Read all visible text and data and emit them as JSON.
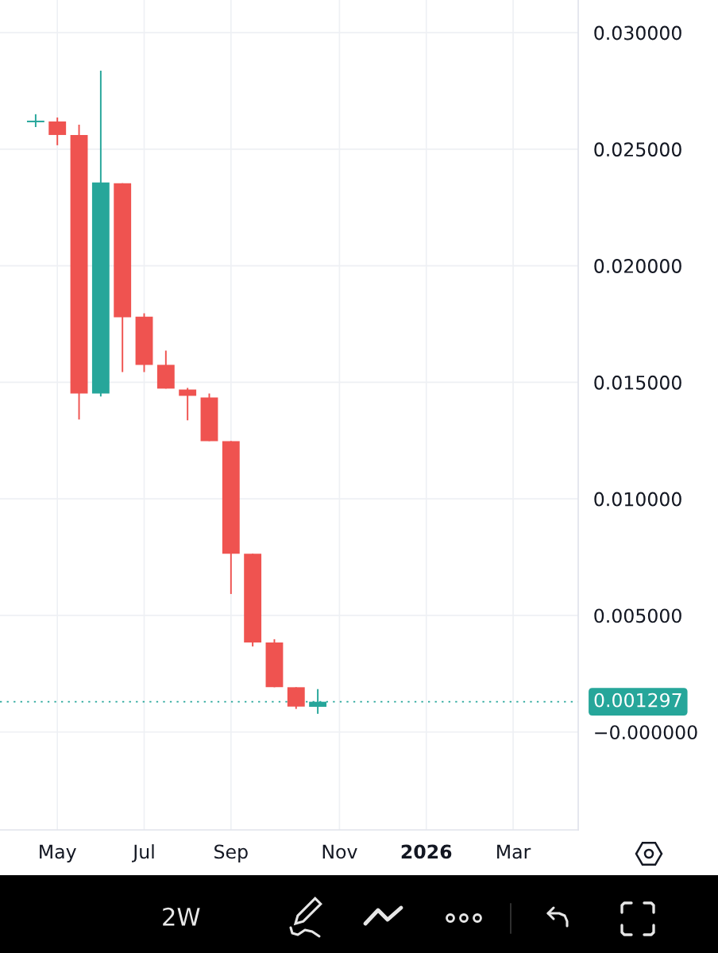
{
  "chart_data": {
    "type": "candlestick",
    "x": [
      "2025-04-28",
      "2025-05-12",
      "2025-05-26",
      "2025-06-09",
      "2025-06-23",
      "2025-07-07",
      "2025-07-21",
      "2025-08-04",
      "2025-08-18",
      "2025-09-01",
      "2025-09-15",
      "2025-09-29",
      "2025-10-13",
      "2025-10-27"
    ],
    "ohlc": [
      [
        0.02619,
        0.0265,
        0.02595,
        0.02619
      ],
      [
        0.02619,
        0.02636,
        0.02517,
        0.02561
      ],
      [
        0.02561,
        0.02605,
        0.0134,
        0.01452
      ],
      [
        0.01452,
        0.02837,
        0.01439,
        0.02357
      ],
      [
        0.02354,
        0.02354,
        0.01544,
        0.01779
      ],
      [
        0.01782,
        0.01796,
        0.01544,
        0.01575
      ],
      [
        0.01575,
        0.01636,
        0.01473,
        0.01473
      ],
      [
        0.01469,
        0.01476,
        0.01337,
        0.01442
      ],
      [
        0.01435,
        0.01452,
        0.01248,
        0.01248
      ],
      [
        0.01248,
        0.01248,
        0.00592,
        0.00765
      ],
      [
        0.00765,
        0.00765,
        0.00367,
        0.00384
      ],
      [
        0.00384,
        0.00398,
        0.00192,
        0.00192
      ],
      [
        0.00192,
        0.00192,
        0.00099,
        0.00109
      ],
      [
        0.00108,
        0.00184,
        0.00078,
        0.001297
      ]
    ],
    "colors": [
      "#26a69a",
      "#ef5350",
      "#ef5350",
      "#26a69a",
      "#ef5350",
      "#ef5350",
      "#ef5350",
      "#ef5350",
      "#ef5350",
      "#ef5350",
      "#ef5350",
      "#ef5350",
      "#ef5350",
      "#26a69a"
    ],
    "xlim": [
      "2025-04-05",
      "2026-04-13"
    ],
    "xticks": [
      {
        "value": "2025-05-12",
        "label": "May"
      },
      {
        "value": "2025-07-07",
        "label": "Jul"
      },
      {
        "value": "2025-09-01",
        "label": "Sep"
      },
      {
        "value": "2025-11-10",
        "label": "Nov"
      },
      {
        "value": "2026-01-05",
        "label": "2026"
      },
      {
        "value": "2026-03-02",
        "label": "Mar"
      }
    ],
    "ylim": [
      -0.0042,
      0.0314
    ],
    "yticks": [
      {
        "value": 0,
        "label": "−0.000000"
      },
      {
        "value": 0.005,
        "label": "0.005000"
      },
      {
        "value": 0.01,
        "label": "0.010000"
      },
      {
        "value": 0.015,
        "label": "0.015000"
      },
      {
        "value": 0.02,
        "label": "0.020000"
      },
      {
        "value": 0.025,
        "label": "0.025000"
      },
      {
        "value": 0.03,
        "label": "0.030000"
      }
    ],
    "ref_lines": [
      {
        "axis": "y",
        "value": 0.001297,
        "label": "0.001297",
        "color": "#26a69a",
        "line_style": "dotted"
      }
    ],
    "grid": true,
    "annotations": [
      "2W"
    ]
  }
}
